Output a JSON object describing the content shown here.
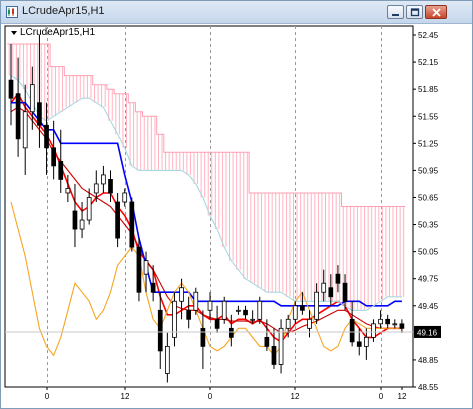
{
  "window": {
    "title": "LCrudeApr15,H1"
  },
  "chart_label": "LCrudeApr15,H1",
  "chart_data": {
    "type": "candlestick",
    "symbol": "LCrudeApr15",
    "timeframe": "H1",
    "ylim": [
      48.55,
      52.55
    ],
    "yticks": [
      "52.45",
      "52.15",
      "51.85",
      "51.55",
      "51.25",
      "50.95",
      "50.65",
      "50.35",
      "50.05",
      "49.75",
      "49.45",
      "49.16",
      "48.85",
      "48.55"
    ],
    "xticks": [
      "0",
      "12",
      "0",
      "12",
      "0",
      "12"
    ],
    "current_price": "49.16",
    "candles": [
      [
        51.95,
        52.35,
        51.45,
        51.75
      ],
      [
        51.8,
        52.2,
        51.1,
        51.3
      ],
      [
        51.2,
        51.9,
        50.9,
        51.6
      ],
      [
        51.6,
        52.1,
        51.4,
        51.9
      ],
      [
        51.7,
        52.45,
        51.2,
        51.45
      ],
      [
        51.45,
        51.7,
        50.9,
        51.2
      ],
      [
        51.2,
        51.5,
        50.85,
        51.0
      ],
      [
        51.05,
        51.4,
        50.7,
        50.85
      ],
      [
        50.7,
        50.9,
        50.6,
        50.75
      ],
      [
        50.5,
        50.8,
        50.1,
        50.3
      ],
      [
        50.3,
        50.6,
        50.2,
        50.4
      ],
      [
        50.4,
        50.75,
        50.35,
        50.65
      ],
      [
        50.7,
        50.95,
        50.6,
        50.8
      ],
      [
        50.8,
        51.0,
        50.7,
        50.9
      ],
      [
        50.85,
        50.95,
        50.6,
        50.7
      ],
      [
        50.6,
        50.7,
        50.1,
        50.2
      ],
      [
        50.6,
        50.75,
        50.55,
        50.7
      ],
      [
        50.6,
        50.65,
        50.05,
        50.1
      ],
      [
        50.1,
        50.2,
        49.5,
        49.6
      ],
      [
        49.8,
        50.05,
        49.6,
        49.95
      ],
      [
        49.7,
        49.9,
        49.5,
        49.6
      ],
      [
        49.4,
        49.6,
        48.75,
        48.95
      ],
      [
        48.7,
        49.15,
        48.6,
        49.0
      ],
      [
        49.1,
        49.6,
        49.0,
        49.5
      ],
      [
        49.5,
        49.75,
        49.3,
        49.65
      ],
      [
        49.4,
        49.55,
        49.2,
        49.3
      ],
      [
        49.4,
        49.65,
        49.35,
        49.6
      ],
      [
        49.2,
        49.4,
        48.75,
        49.0
      ],
      [
        49.4,
        49.6,
        49.3,
        49.5
      ],
      [
        49.3,
        49.45,
        49.15,
        49.2
      ],
      [
        49.3,
        49.55,
        49.25,
        49.5
      ],
      [
        49.2,
        49.35,
        49.0,
        49.1
      ],
      [
        49.4,
        49.45,
        49.35,
        49.4
      ],
      [
        49.4,
        49.45,
        49.3,
        49.35
      ],
      [
        49.3,
        49.4,
        49.25,
        49.3
      ],
      [
        49.3,
        49.55,
        49.25,
        49.5
      ],
      [
        49.1,
        49.3,
        48.95,
        49.0
      ],
      [
        49.0,
        49.2,
        48.75,
        48.8
      ],
      [
        48.8,
        49.3,
        48.7,
        49.2
      ],
      [
        49.2,
        49.35,
        49.1,
        49.3
      ],
      [
        49.3,
        49.5,
        49.25,
        49.45
      ],
      [
        49.45,
        49.6,
        49.35,
        49.4
      ],
      [
        49.2,
        49.4,
        49.1,
        49.3
      ],
      [
        49.3,
        49.7,
        49.25,
        49.6
      ],
      [
        49.6,
        49.85,
        49.5,
        49.7
      ],
      [
        49.65,
        49.8,
        49.45,
        49.55
      ],
      [
        49.8,
        49.9,
        49.6,
        49.7
      ],
      [
        49.7,
        49.8,
        49.4,
        49.5
      ],
      [
        49.3,
        49.5,
        49.0,
        49.05
      ],
      [
        49.05,
        49.2,
        48.9,
        49.0
      ],
      [
        49.0,
        49.2,
        48.85,
        49.1
      ],
      [
        49.1,
        49.3,
        49.05,
        49.25
      ],
      [
        49.25,
        49.4,
        49.2,
        49.3
      ],
      [
        49.3,
        49.35,
        49.2,
        49.25
      ],
      [
        49.25,
        49.3,
        49.2,
        49.25
      ],
      [
        49.25,
        49.3,
        49.15,
        49.2
      ]
    ],
    "indicators": [
      {
        "color": "#ff0000",
        "values": [
          51.7,
          51.8,
          51.65,
          51.55,
          51.45,
          51.35,
          51.2,
          51.0,
          50.8,
          50.6,
          50.5,
          50.55,
          50.65,
          50.7,
          50.7,
          50.55,
          50.45,
          50.3,
          50.05,
          49.95,
          49.85,
          49.55,
          49.35,
          49.35,
          49.4,
          49.45,
          49.45,
          49.35,
          49.3,
          49.3,
          49.35,
          49.25,
          49.3,
          49.3,
          49.25,
          49.3,
          49.2,
          49.1,
          49.05,
          49.15,
          49.25,
          49.3,
          49.3,
          49.35,
          49.4,
          49.45,
          49.5,
          49.45,
          49.3,
          49.2,
          49.1,
          49.1,
          49.15,
          49.2,
          49.2,
          49.2
        ]
      },
      {
        "color": "#cc0000",
        "values": [
          51.6,
          51.65,
          51.6,
          51.5,
          51.4,
          51.3,
          51.15,
          51.05,
          50.95,
          50.85,
          50.75,
          50.7,
          50.65,
          50.6,
          50.55,
          50.45,
          50.35,
          50.25,
          50.1,
          49.95,
          49.85,
          49.7,
          49.55,
          49.45,
          49.42,
          49.4,
          49.4,
          49.35,
          49.32,
          49.3,
          49.3,
          49.28,
          49.28,
          49.28,
          49.27,
          49.28,
          49.25,
          49.2,
          49.15,
          49.15,
          49.18,
          49.22,
          49.25,
          49.28,
          49.32,
          49.36,
          49.4,
          49.4,
          49.35,
          49.3,
          49.25,
          49.22,
          49.2,
          49.2,
          49.2,
          49.2
        ]
      },
      {
        "color": "#0000ff",
        "values": [
          51.7,
          51.7,
          51.7,
          51.6,
          51.5,
          51.4,
          51.4,
          51.25,
          51.25,
          51.25,
          51.25,
          51.25,
          51.25,
          51.25,
          51.25,
          51.25,
          50.9,
          50.6,
          50.2,
          49.9,
          49.6,
          49.6,
          49.6,
          49.6,
          49.6,
          49.6,
          49.5,
          49.5,
          49.5,
          49.5,
          49.5,
          49.5,
          49.5,
          49.5,
          49.5,
          49.5,
          49.5,
          49.5,
          49.45,
          49.45,
          49.45,
          49.45,
          49.45,
          49.45,
          49.45,
          49.45,
          49.45,
          49.5,
          49.5,
          49.5,
          49.45,
          49.45,
          49.45,
          49.45,
          49.5,
          49.5
        ]
      },
      {
        "color": "#f5a623",
        "values": [
          50.6,
          50.3,
          50.0,
          49.6,
          49.2,
          49.0,
          48.9,
          49.1,
          49.4,
          49.7,
          49.6,
          49.5,
          49.3,
          49.4,
          49.6,
          49.9,
          50.0,
          50.1,
          50.0,
          49.6,
          49.3,
          49.2,
          49.4,
          49.6,
          49.7,
          49.6,
          49.4,
          49.2,
          49.0,
          48.95,
          49.0,
          49.1,
          49.2,
          49.2,
          49.1,
          49.0,
          49.0,
          48.9,
          49.0,
          49.3,
          49.5,
          49.6,
          49.4,
          49.2,
          49.0,
          48.95,
          49.0,
          49.2,
          49.3,
          49.25,
          49.2,
          49.2,
          49.2,
          49.2,
          49.2,
          49.2
        ]
      },
      {
        "color": "#a8d8e0",
        "values": [
          52.0,
          51.95,
          51.85,
          51.7,
          51.55,
          51.5,
          51.55,
          51.6,
          51.65,
          51.7,
          51.75,
          51.75,
          51.7,
          51.65,
          51.5,
          51.35,
          51.2,
          51.0,
          50.95,
          50.95,
          50.95,
          50.95,
          50.95,
          50.95,
          50.95,
          50.9,
          50.8,
          50.65,
          50.45,
          50.3,
          50.1,
          49.95,
          49.85,
          49.75,
          49.7,
          49.65,
          49.6,
          49.6,
          49.6,
          49.55,
          49.5,
          49.5,
          49.5,
          49.5,
          49.5,
          49.5,
          49.5,
          49.45,
          49.4,
          49.4,
          49.4,
          49.45,
          49.5,
          49.55,
          49.55,
          49.55
        ]
      }
    ],
    "cloud_top": [
      52.35,
      52.35,
      52.35,
      52.35,
      52.35,
      52.35,
      52.1,
      52.1,
      52.0,
      52.0,
      52.0,
      52.0,
      51.9,
      51.9,
      51.85,
      51.8,
      51.8,
      51.7,
      51.6,
      51.55,
      51.55,
      51.35,
      51.15,
      51.15,
      51.15,
      51.15,
      51.15,
      51.15,
      51.15,
      51.15,
      51.15,
      51.15,
      51.15,
      51.15,
      50.7,
      50.7,
      50.7,
      50.7,
      50.7,
      50.7,
      50.7,
      50.7,
      50.7,
      50.7,
      50.7,
      50.7,
      50.7,
      50.55,
      50.55,
      50.55,
      50.55,
      50.55,
      50.55,
      50.55,
      50.55,
      50.55
    ],
    "cloud_bottom": [
      52.0,
      51.95,
      51.85,
      51.7,
      51.55,
      51.5,
      51.55,
      51.6,
      51.65,
      51.7,
      51.75,
      51.75,
      51.7,
      51.65,
      51.5,
      51.35,
      51.2,
      51.0,
      50.95,
      50.95,
      50.95,
      50.95,
      50.95,
      50.95,
      50.95,
      50.9,
      50.8,
      50.65,
      50.45,
      50.3,
      50.1,
      49.95,
      49.85,
      49.75,
      49.7,
      49.65,
      49.6,
      49.6,
      49.6,
      49.55,
      49.5,
      49.5,
      49.5,
      49.5,
      49.5,
      49.5,
      49.5,
      49.45,
      49.4,
      49.4,
      49.4,
      49.45,
      49.5,
      49.55,
      49.55,
      49.55
    ]
  }
}
